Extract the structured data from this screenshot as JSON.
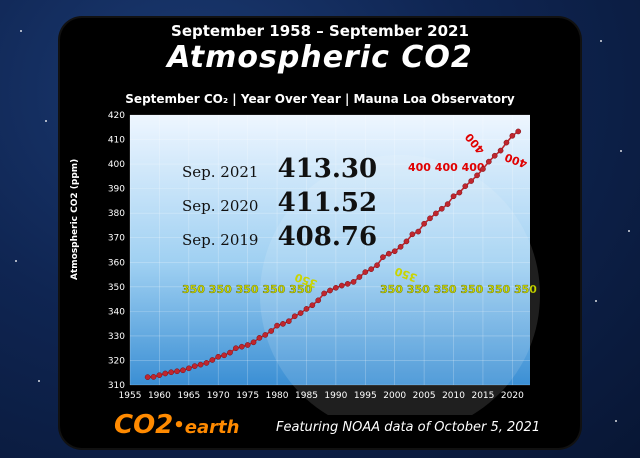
{
  "header": {
    "date_range": "September 1958 – September 2021",
    "title": "Atmospheric CO2",
    "subtitle": "September CO₂  | Year Over Year | Mauna Loa Observatory"
  },
  "annotations": [
    {
      "label": "Sep. 2021",
      "value": "413.30"
    },
    {
      "label": "Sep. 2020",
      "value": "411.52"
    },
    {
      "label": "Sep. 2019",
      "value": "408.76"
    }
  ],
  "threshold_labels": {
    "t350_left": "350 350 350 350 350",
    "t350_rot_left": "350",
    "t350_right": "350 350 350 350 350 350",
    "t350_rot_right": "350",
    "t400": "400 400 400",
    "t400_rot_a": "400",
    "t400_rot_b": "400"
  },
  "footer": {
    "logo": "CO2",
    "logo_dot": "•",
    "logo_word": "earth",
    "text": "Featuring NOAA data of October 5, 2021"
  },
  "colors": {
    "threshold_350": "#c9d400",
    "threshold_400": "#e00000",
    "line": "#c0262e",
    "logo": "#ff8a00"
  },
  "chart_data": {
    "type": "line",
    "title": "Atmospheric CO2",
    "xlabel": "",
    "ylabel": "Atmospheric  CO2  (ppm)",
    "xlim": [
      1955,
      2023
    ],
    "ylim": [
      310,
      420
    ],
    "xticks": [
      1955,
      1960,
      1965,
      1970,
      1975,
      1980,
      1985,
      1990,
      1995,
      2000,
      2005,
      2010,
      2015,
      2020
    ],
    "yticks": [
      310,
      320,
      330,
      340,
      350,
      360,
      370,
      380,
      390,
      400,
      410,
      420
    ],
    "series": [
      {
        "name": "September CO2",
        "x": [
          1958,
          1959,
          1960,
          1961,
          1962,
          1963,
          1964,
          1965,
          1966,
          1967,
          1968,
          1969,
          1970,
          1971,
          1972,
          1973,
          1974,
          1975,
          1976,
          1977,
          1978,
          1979,
          1980,
          1981,
          1982,
          1983,
          1984,
          1985,
          1986,
          1987,
          1988,
          1989,
          1990,
          1991,
          1992,
          1993,
          1994,
          1995,
          1996,
          1997,
          1998,
          1999,
          2000,
          2001,
          2002,
          2003,
          2004,
          2005,
          2006,
          2007,
          2008,
          2009,
          2010,
          2011,
          2012,
          2013,
          2014,
          2015,
          2016,
          2017,
          2018,
          2019,
          2020,
          2021
        ],
        "values": [
          313.2,
          313.3,
          314.0,
          314.7,
          315.2,
          315.6,
          316.0,
          316.8,
          317.7,
          318.3,
          319.0,
          320.2,
          321.5,
          322.1,
          323.2,
          325.0,
          325.6,
          326.3,
          327.4,
          329.2,
          330.4,
          332.0,
          334.2,
          334.9,
          336.0,
          338.0,
          339.3,
          341.0,
          342.5,
          344.5,
          347.3,
          348.5,
          349.6,
          350.5,
          351.2,
          352.0,
          354.0,
          356.0,
          357.2,
          358.8,
          362.1,
          363.5,
          364.5,
          366.3,
          368.5,
          371.4,
          372.5,
          375.7,
          377.9,
          379.9,
          381.8,
          383.7,
          386.9,
          388.4,
          391.0,
          393.1,
          395.4,
          398.0,
          401.0,
          403.4,
          405.5,
          408.76,
          411.52,
          413.3
        ]
      }
    ]
  }
}
